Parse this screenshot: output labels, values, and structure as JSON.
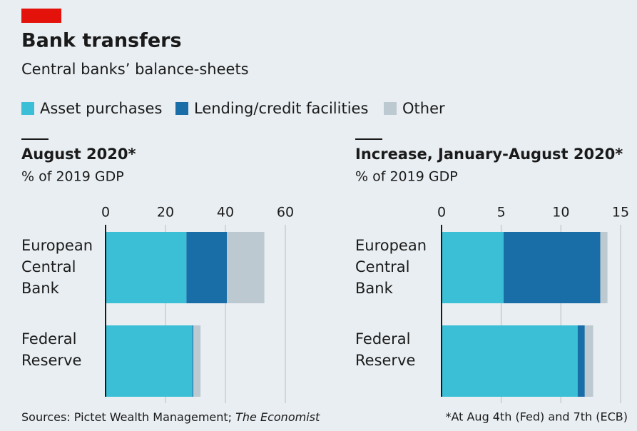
{
  "title": "Bank transfers",
  "subtitle": "Central banks’ balance-sheets",
  "source": [
    "Sources: Pictet Wealth Management; ",
    "The Economist"
  ],
  "footnote": "*At Aug 4th (Fed) and 7th (ECB)",
  "chart_data": [
    {
      "type": "bar",
      "orientation": "horizontal",
      "stacked": true,
      "title": "August 2020*",
      "subtitle": "% of 2019 GDP",
      "categories": [
        "European Central Bank",
        "Federal Reserve"
      ],
      "series": [
        {
          "name": "Asset purchases",
          "color": "#3bbfd6",
          "values": [
            27,
            29
          ]
        },
        {
          "name": "Lending/credit facilities",
          "color": "#1a6ea8",
          "values": [
            13.5,
            0.3
          ]
        },
        {
          "name": "Other",
          "color": "#bcc9d0",
          "values": [
            12.5,
            2.4
          ]
        }
      ],
      "xlim": [
        0,
        60
      ],
      "xticks": [
        0,
        20,
        40,
        60
      ],
      "grid": true
    },
    {
      "type": "bar",
      "orientation": "horizontal",
      "stacked": true,
      "title": "Increase, January-August 2020*",
      "subtitle": "% of 2019 GDP",
      "categories": [
        "European Central Bank",
        "Federal Reserve"
      ],
      "series": [
        {
          "name": "Asset purchases",
          "color": "#3bbfd6",
          "values": [
            5.2,
            11.4
          ]
        },
        {
          "name": "Lending/credit facilities",
          "color": "#1a6ea8",
          "values": [
            8.1,
            0.6
          ]
        },
        {
          "name": "Other",
          "color": "#bcc9d0",
          "values": [
            0.6,
            0.7
          ]
        }
      ],
      "xlim": [
        0,
        15
      ],
      "xticks": [
        0,
        5,
        10,
        15
      ],
      "grid": true
    }
  ]
}
